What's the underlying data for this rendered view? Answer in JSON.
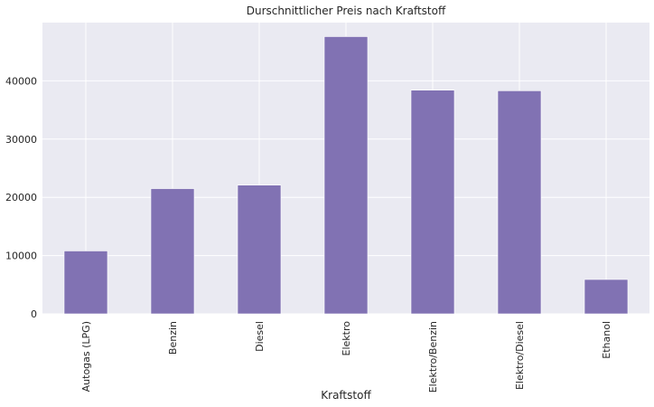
{
  "chart_data": {
    "type": "bar",
    "title": "Durschnittlicher Preis nach Kraftstoff",
    "xlabel": "Kraftstoff",
    "ylabel": "",
    "categories": [
      "Autogas (LPG)",
      "Benzin",
      "Diesel",
      "Elektro",
      "Elektro/Benzin",
      "Elektro/Diesel",
      "Ethanol"
    ],
    "values": [
      10800,
      21500,
      22100,
      47600,
      38400,
      38300,
      5900
    ],
    "ylim": [
      0,
      50000
    ],
    "yticks": [
      0,
      10000,
      20000,
      30000,
      40000
    ],
    "grid": true,
    "bar_color": "#8172b3",
    "background_color": "#eaeaf2"
  }
}
